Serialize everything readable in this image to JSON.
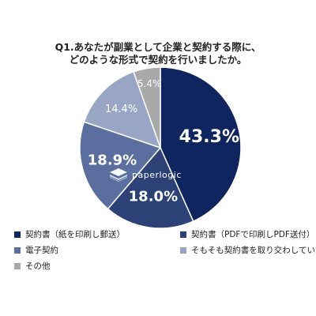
{
  "title_line1": "Q1.あなたが副業として企業と契約する際に、",
  "title_line2": "どのような形式で契約を行いましたか。",
  "chart_data": {
    "type": "pie",
    "title": "Q1.あなたが副業として企業と契約する際に、どのような形式で契約を行いましたか。",
    "series": [
      {
        "name": "契約書（紙を印刷し郵送）",
        "value": 43.3,
        "label": "43.3%",
        "color": "#0f2560"
      },
      {
        "name": "契約書（PDFで印刷しPDF送付）",
        "value": 18.0,
        "label": "18.0%",
        "color": "#2c4276"
      },
      {
        "name": "電子契約",
        "value": 18.9,
        "label": "18.9%",
        "color": "#5a6f9f"
      },
      {
        "name": "そもそも契約書を取り交わしていない",
        "value": 14.4,
        "label": "14.4%",
        "color": "#98a5c4"
      },
      {
        "name": "その他",
        "value": 5.4,
        "label": "5.4%",
        "color": "#a9a9a9"
      }
    ],
    "legend_placement": "bottom"
  },
  "legend": [
    {
      "label": "契約書（紙を印刷し郵送）",
      "color": "#0f2560"
    },
    {
      "label": "契約書（PDFで印刷しPDF送付）",
      "color": "#2c4276"
    },
    {
      "label": "電子契約",
      "color": "#5a6f9f"
    },
    {
      "label": "そもそも契約書を取り交わしていない",
      "color": "#98a5c4"
    },
    {
      "label": "その他",
      "color": "#a9a9a9"
    }
  ],
  "brand": {
    "name": "paperlogic",
    "logo_icon": "paperlogic-layers-icon"
  }
}
